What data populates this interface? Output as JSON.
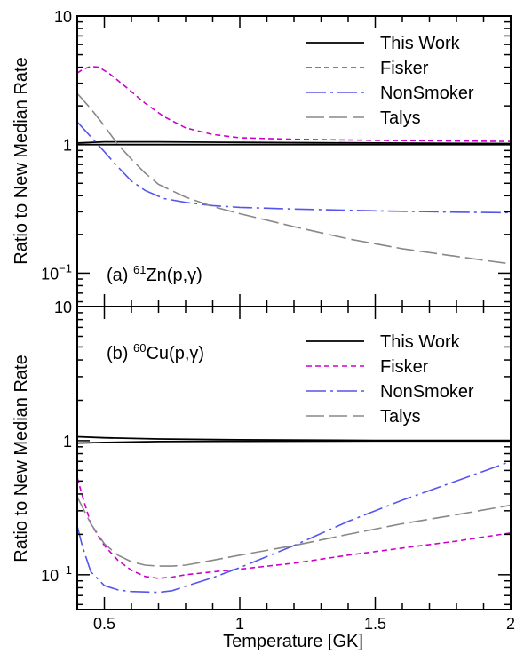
{
  "chart_data": [
    {
      "type": "line",
      "panel_label": "(a)",
      "reaction_mass": "61",
      "reaction_element": "Zn",
      "reaction_process": "(p,γ)",
      "ylabel": "Ratio to New Median Rate",
      "yscale": "log",
      "ylim": [
        0.055,
        10
      ],
      "y_ticks": [
        {
          "value": 10,
          "label": "10"
        },
        {
          "value": 1,
          "label": "1"
        },
        {
          "value": 0.1,
          "label": "10",
          "sup": "−1"
        }
      ],
      "xlim": [
        0.4,
        2.0
      ],
      "legend_position": "top-right",
      "series": [
        {
          "name": "This Work",
          "color": "#000000",
          "dash": "solid",
          "points": [
            [
              0.4,
              1.0
            ],
            [
              2.0,
              1.0
            ]
          ]
        },
        {
          "name": "This Work",
          "color": "#000000",
          "dash": "solid",
          "legend": false,
          "points": [
            [
              0.4,
              1.03
            ],
            [
              0.5,
              1.05
            ],
            [
              0.7,
              1.05
            ],
            [
              1.0,
              1.04
            ],
            [
              1.5,
              1.03
            ],
            [
              2.0,
              1.02
            ]
          ]
        },
        {
          "name": "Fisker",
          "color": "#cc00cc",
          "dash": "6,4",
          "points": [
            [
              0.4,
              3.6
            ],
            [
              0.42,
              3.85
            ],
            [
              0.45,
              4.05
            ],
            [
              0.48,
              4.0
            ],
            [
              0.52,
              3.55
            ],
            [
              0.58,
              2.8
            ],
            [
              0.65,
              2.1
            ],
            [
              0.72,
              1.65
            ],
            [
              0.8,
              1.35
            ],
            [
              0.9,
              1.2
            ],
            [
              1.0,
              1.13
            ],
            [
              1.2,
              1.1
            ],
            [
              1.5,
              1.08
            ],
            [
              2.0,
              1.06
            ]
          ]
        },
        {
          "name": "NonSmoker",
          "color": "#5555ee",
          "dash": "22,5,3,5",
          "points": [
            [
              0.4,
              1.5
            ],
            [
              0.45,
              1.15
            ],
            [
              0.5,
              0.88
            ],
            [
              0.55,
              0.67
            ],
            [
              0.6,
              0.52
            ],
            [
              0.65,
              0.44
            ],
            [
              0.72,
              0.38
            ],
            [
              0.8,
              0.355
            ],
            [
              0.9,
              0.335
            ],
            [
              1.0,
              0.325
            ],
            [
              1.2,
              0.315
            ],
            [
              1.5,
              0.305
            ],
            [
              1.8,
              0.298
            ],
            [
              2.0,
              0.295
            ]
          ]
        },
        {
          "name": "Talys",
          "color": "#888888",
          "dash": "20,6",
          "points": [
            [
              0.4,
              2.5
            ],
            [
              0.45,
              1.9
            ],
            [
              0.5,
              1.4
            ],
            [
              0.55,
              1.0
            ],
            [
              0.6,
              0.77
            ],
            [
              0.65,
              0.6
            ],
            [
              0.7,
              0.49
            ],
            [
              0.8,
              0.39
            ],
            [
              0.9,
              0.33
            ],
            [
              1.0,
              0.29
            ],
            [
              1.2,
              0.23
            ],
            [
              1.4,
              0.185
            ],
            [
              1.6,
              0.155
            ],
            [
              1.8,
              0.135
            ],
            [
              2.0,
              0.118
            ]
          ]
        }
      ]
    },
    {
      "type": "line",
      "panel_label": "(b)",
      "reaction_mass": "60",
      "reaction_element": "Cu",
      "reaction_process": "(p,γ)",
      "ylabel": "Ratio to New Median Rate",
      "yscale": "log",
      "ylim": [
        0.055,
        10
      ],
      "y_ticks": [
        {
          "value": 10,
          "label": "10"
        },
        {
          "value": 1,
          "label": "1"
        },
        {
          "value": 0.1,
          "label": "10",
          "sup": "−1"
        }
      ],
      "xlim": [
        0.4,
        2.0
      ],
      "xlabel": "Temperature [GK]",
      "x_ticks": [
        {
          "value": 0.5,
          "label": "0.5"
        },
        {
          "value": 1.0,
          "label": "1"
        },
        {
          "value": 1.5,
          "label": "1.5"
        },
        {
          "value": 2.0,
          "label": "2"
        }
      ],
      "legend_position": "top-right",
      "series": [
        {
          "name": "This Work",
          "color": "#000000",
          "dash": "solid",
          "points": [
            [
              0.4,
              0.96
            ],
            [
              0.5,
              0.97
            ],
            [
              0.7,
              0.985
            ],
            [
              1.0,
              0.99
            ],
            [
              1.5,
              0.995
            ],
            [
              2.0,
              0.995
            ]
          ]
        },
        {
          "name": "This Work",
          "color": "#000000",
          "dash": "solid",
          "legend": false,
          "points": [
            [
              0.4,
              1.07
            ],
            [
              0.5,
              1.05
            ],
            [
              0.7,
              1.03
            ],
            [
              1.0,
              1.015
            ],
            [
              1.5,
              1.005
            ],
            [
              2.0,
              1.005
            ]
          ]
        },
        {
          "name": "Fisker",
          "color": "#cc00cc",
          "dash": "6,4",
          "points": [
            [
              0.4,
              0.53
            ],
            [
              0.42,
              0.38
            ],
            [
              0.45,
              0.24
            ],
            [
              0.5,
              0.165
            ],
            [
              0.55,
              0.128
            ],
            [
              0.6,
              0.108
            ],
            [
              0.65,
              0.097
            ],
            [
              0.7,
              0.094
            ],
            [
              0.75,
              0.096
            ],
            [
              0.8,
              0.1
            ],
            [
              0.9,
              0.105
            ],
            [
              1.0,
              0.11
            ],
            [
              1.2,
              0.122
            ],
            [
              1.4,
              0.14
            ],
            [
              1.6,
              0.158
            ],
            [
              1.8,
              0.178
            ],
            [
              2.0,
              0.205
            ]
          ]
        },
        {
          "name": "NonSmoker",
          "color": "#5555ee",
          "dash": "22,5,3,5",
          "points": [
            [
              0.4,
              0.23
            ],
            [
              0.42,
              0.16
            ],
            [
              0.45,
              0.105
            ],
            [
              0.5,
              0.083
            ],
            [
              0.55,
              0.077
            ],
            [
              0.6,
              0.075
            ],
            [
              0.7,
              0.074
            ],
            [
              0.75,
              0.076
            ],
            [
              0.8,
              0.082
            ],
            [
              0.9,
              0.095
            ],
            [
              1.0,
              0.113
            ],
            [
              1.2,
              0.165
            ],
            [
              1.4,
              0.25
            ],
            [
              1.6,
              0.36
            ],
            [
              1.8,
              0.5
            ],
            [
              2.0,
              0.7
            ]
          ]
        },
        {
          "name": "Talys",
          "color": "#888888",
          "dash": "20,6",
          "points": [
            [
              0.4,
              0.38
            ],
            [
              0.45,
              0.24
            ],
            [
              0.5,
              0.17
            ],
            [
              0.55,
              0.14
            ],
            [
              0.6,
              0.125
            ],
            [
              0.65,
              0.118
            ],
            [
              0.7,
              0.116
            ],
            [
              0.75,
              0.116
            ],
            [
              0.8,
              0.118
            ],
            [
              0.9,
              0.128
            ],
            [
              1.0,
              0.14
            ],
            [
              1.2,
              0.165
            ],
            [
              1.4,
              0.2
            ],
            [
              1.6,
              0.24
            ],
            [
              1.8,
              0.28
            ],
            [
              2.0,
              0.33
            ]
          ]
        }
      ]
    }
  ]
}
